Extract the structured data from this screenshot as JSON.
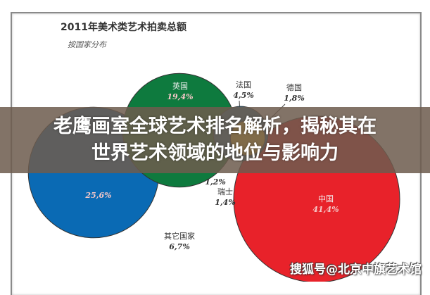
{
  "chart_data": {
    "type": "bubble",
    "title": "2011年美术类艺术拍卖总额",
    "subtitle": "按国家分布",
    "points": [
      {
        "label": "中国",
        "value_label": "41,4%",
        "value": 41.4,
        "color": "#e8222a"
      },
      {
        "label": "",
        "value_label": "25,6%",
        "value": 25.6,
        "color": "#0a6ab4"
      },
      {
        "label": "英国",
        "value_label": "19,4%",
        "value": 19.4,
        "color": "#0e7a3e"
      },
      {
        "label": "其它国家",
        "value_label": "6,7%",
        "value": 6.7,
        "color": "#ffffff"
      },
      {
        "label": "法国",
        "value_label": "4,5%",
        "value": 4.5,
        "color": "#1f6f9a"
      },
      {
        "label": "德国",
        "value_label": "1,8%",
        "value": 1.8,
        "color": "#f2c230"
      },
      {
        "label": "瑞士",
        "value_label": "1,4%",
        "value": 1.4,
        "color": "#ffffff"
      },
      {
        "label": "",
        "value_label": "1,2%",
        "value": 1.2,
        "color": "#ffffff"
      }
    ]
  },
  "banner": {
    "line1": "老鹰画室全球艺术排名解析，揭秘其在",
    "line2": "世界艺术领域的地位与影响力"
  },
  "watermark": "搜狐号@北京中旗艺术馆"
}
